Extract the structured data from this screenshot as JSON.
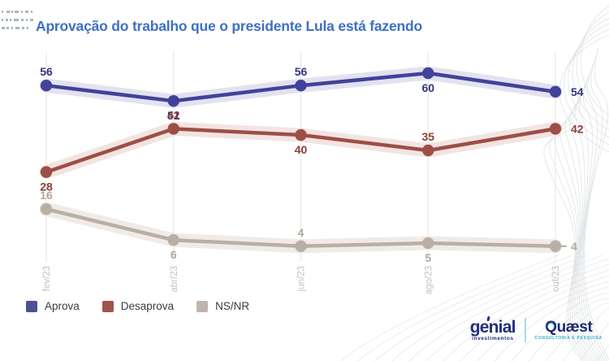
{
  "title": "Aprovação do trabalho que o presidente Lula está fazendo",
  "colors": {
    "title": "#3e70c4",
    "gridline": "#eae8e6",
    "axis_label": "#c6c1bc"
  },
  "chart_data": {
    "type": "line",
    "title": "Aprovação do trabalho que o presidente Lula está fazendo",
    "x_labels": [
      "fev/23",
      "abr/23",
      "jun/23",
      "ago/23",
      "out/23"
    ],
    "ylim": [
      0,
      67
    ],
    "grid": "vertical-only",
    "legend_position": "bottom-left",
    "series": [
      {
        "name": "Aprova",
        "values": [
          56,
          51,
          56,
          60,
          54
        ],
        "color": "#42429a",
        "halo_color": "#e2e2f0",
        "label_color": "#33337f",
        "label_positions": [
          "above",
          "below",
          "above",
          "below",
          "right"
        ],
        "end_tick": false
      },
      {
        "name": "Desaprova",
        "values": [
          28,
          42,
          40,
          35,
          42
        ],
        "color": "#9d4e47",
        "halo_color": "#f2e4e1",
        "label_color": "#8a3f38",
        "label_positions": [
          "below",
          "above",
          "below",
          "above",
          "right"
        ],
        "end_tick": false
      },
      {
        "name": "NS/NR",
        "values": [
          16,
          6,
          4,
          5,
          4
        ],
        "color": "#b8afa6",
        "halo_color": "#f0ebe7",
        "label_color": "#b2a89e",
        "label_positions": [
          "above",
          "below",
          "above",
          "below",
          "right"
        ],
        "end_tick": true
      }
    ]
  },
  "legend": {
    "items": [
      {
        "label": "Aprova",
        "color": "#4f4f97"
      },
      {
        "label": "Desaprova",
        "color": "#a1534d"
      },
      {
        "label": "NS/NR",
        "color": "#beb6ae"
      }
    ]
  },
  "branding": {
    "genial": {
      "wordmark": "genial",
      "subtitle": "investimentos"
    },
    "quaest": {
      "wordmark": "Quæst",
      "subtitle": "CONSULTORIA E PESQUISA"
    }
  }
}
